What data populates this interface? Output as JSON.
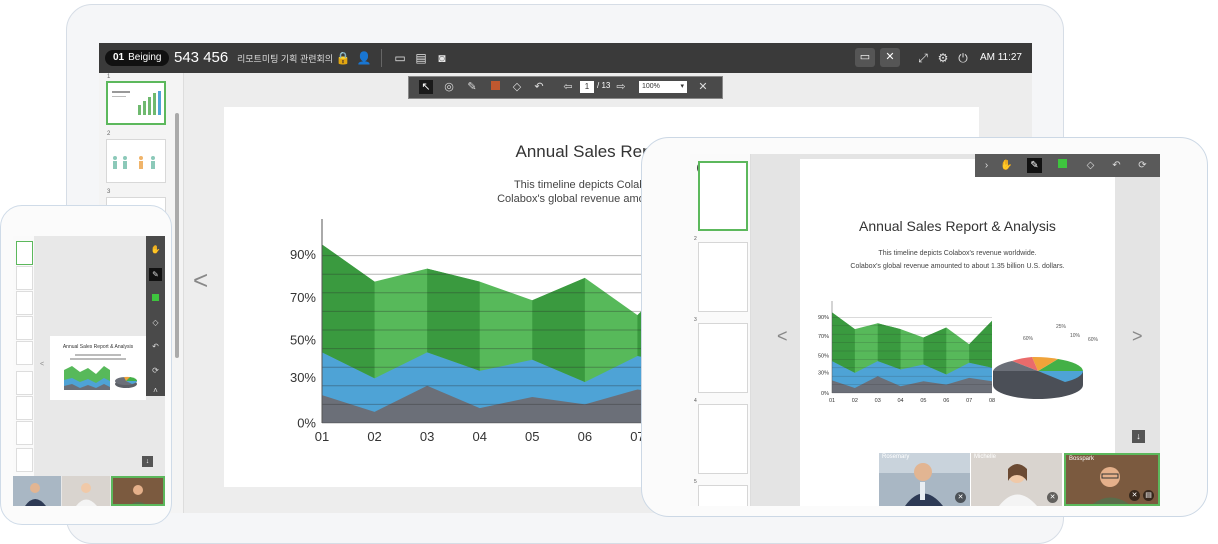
{
  "desktop": {
    "room_id": "01",
    "room_location": "Beiging",
    "room_number": "543 456",
    "room_name": "리모트미팅 기획 관련회의",
    "clock": "AM 11:27",
    "toolbar": {
      "page_current": "1",
      "page_separator": "/",
      "page_total": "13",
      "zoom": "100%"
    },
    "thumbnails": [
      "1",
      "2",
      "3"
    ],
    "slide": {
      "title": "Annual Sales Report &",
      "desc_line1": "This timeline depicts Colabox's reve",
      "desc_line2": "Colabox's global revenue amounted to abo",
      "prev_arrow": "<"
    }
  },
  "tablet": {
    "thumbnails": [
      "1",
      "2",
      "3",
      "4",
      "5"
    ],
    "slide": {
      "title": "Annual Sales Report & Analysis",
      "desc_line1": "This timeline depicts Colabox's revenue worldwide.",
      "desc_line2": "Colabox's global revenue amounted to about 1.35 billion U.S. dollars."
    },
    "nav": {
      "prev": "<",
      "next": ">"
    },
    "pie_labels": [
      "60%",
      "25%",
      "10%",
      "60%"
    ],
    "videos": [
      {
        "name": "Rosemary"
      },
      {
        "name": "Michelle"
      },
      {
        "name": "Bosspark"
      }
    ]
  },
  "phone": {
    "slide_title": "Annual Sales Report & Analysis",
    "nav_prev": "<"
  },
  "colors": {
    "green_dark": "#3a9a3f",
    "green_light": "#57b95a",
    "blue": "#4ea3d6",
    "gray": "#6b6f78",
    "active_border": "#5cb85c"
  },
  "chart_data": [
    {
      "type": "area",
      "title": "",
      "xlabel": "",
      "ylabel": "",
      "categories": [
        "01",
        "02",
        "03",
        "04",
        "05",
        "06",
        "07",
        "08"
      ],
      "y_tick_labels": [
        "0%",
        "30%",
        "50%",
        "70%",
        "90%"
      ],
      "stacked": true,
      "series": [
        {
          "values": [
            15,
            6,
            20,
            8,
            14,
            10,
            18,
            14
          ]
        },
        {
          "values": [
            38,
            24,
            38,
            28,
            34,
            22,
            36,
            30
          ]
        },
        {
          "values": [
            96,
            76,
            83,
            76,
            66,
            78,
            58,
            86
          ]
        }
      ],
      "grid": true
    }
  ]
}
